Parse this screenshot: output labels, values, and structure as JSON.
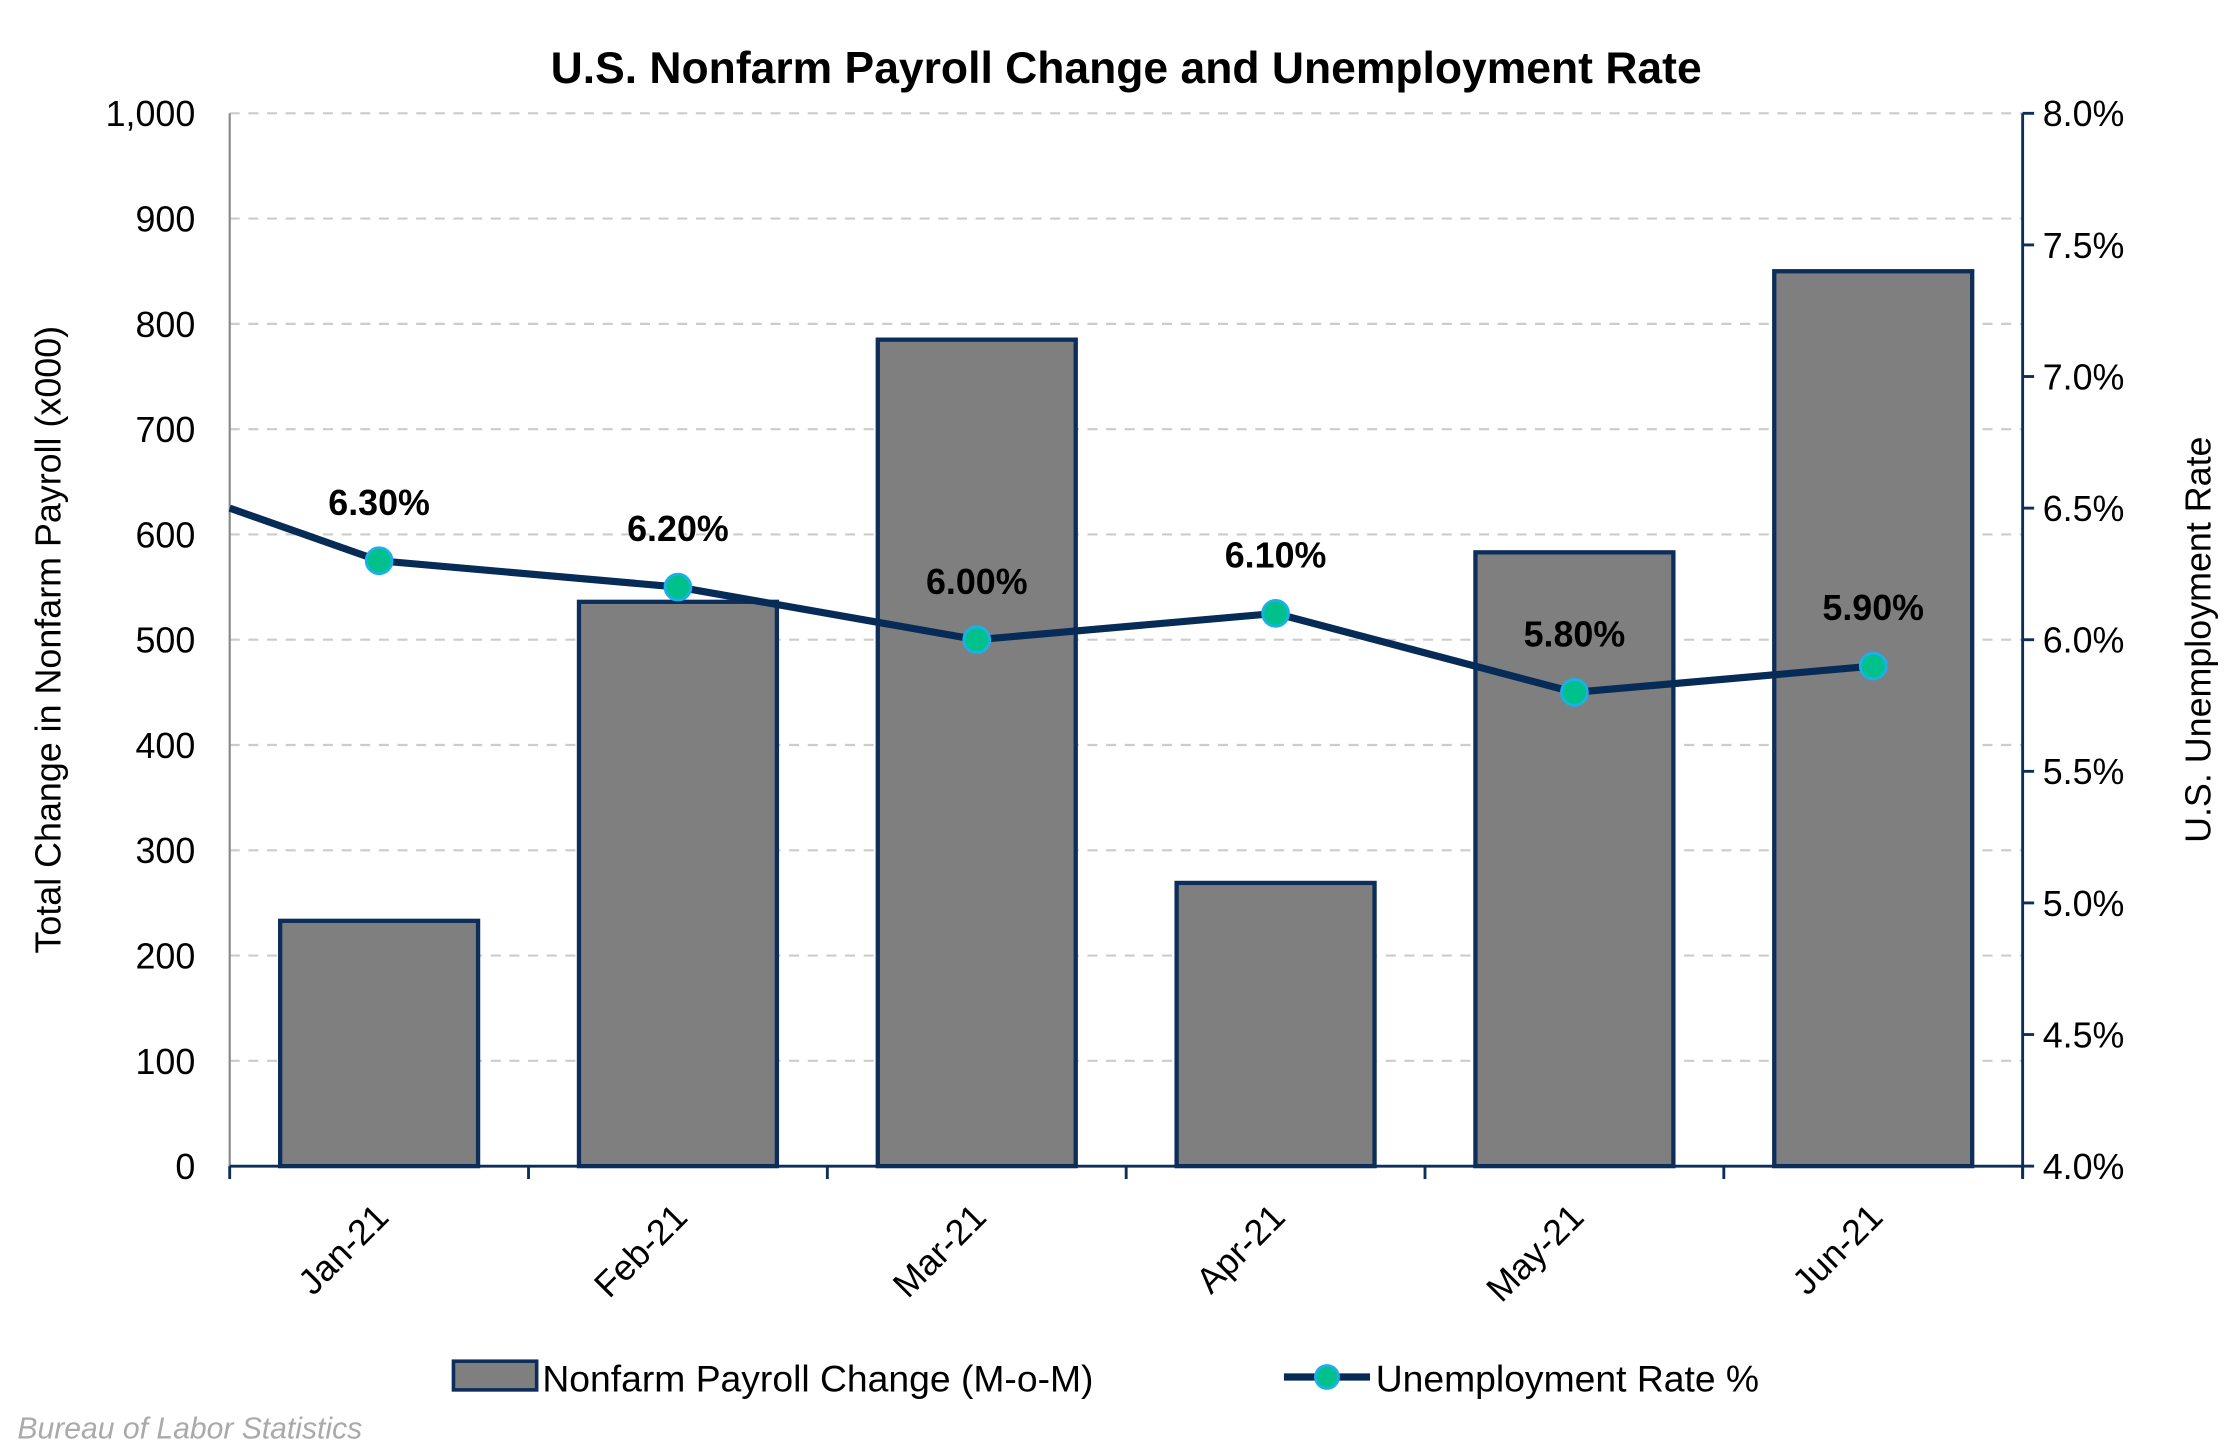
{
  "chart_data": {
    "type": "bar+line",
    "title": "U.S. Nonfarm Payroll Change and Unemployment Rate",
    "categories": [
      "Jan-21",
      "Feb-21",
      "Mar-21",
      "Apr-21",
      "May-21",
      "Jun-21"
    ],
    "series": [
      {
        "name": "Nonfarm Payroll Change (M-o-M)",
        "type": "bar",
        "axis": "left",
        "values": [
          233,
          536,
          785,
          269,
          583,
          850
        ]
      },
      {
        "name": "Unemployment Rate %",
        "type": "line",
        "axis": "right",
        "values": [
          6.3,
          6.2,
          6.0,
          6.1,
          5.8,
          5.9
        ],
        "labels": [
          "6.30%",
          "6.20%",
          "6.00%",
          "6.10%",
          "5.80%",
          "5.90%"
        ],
        "prior_value": 6.7
      }
    ],
    "ylabel": "Total Change in Nonfarm Payroll (x000)",
    "ylabel_right": "U.S. Unemployment Rate",
    "ylim": [
      0,
      1000
    ],
    "ylim_right": [
      4.0,
      8.0
    ],
    "yticks": [
      "0",
      "100",
      "200",
      "300",
      "400",
      "500",
      "600",
      "700",
      "800",
      "900",
      "1,000"
    ],
    "yticks_right": [
      "4.0%",
      "4.5%",
      "5.0%",
      "5.5%",
      "6.0%",
      "6.5%",
      "7.0%",
      "7.5%",
      "8.0%"
    ],
    "grid": true,
    "legend_position": "bottom",
    "source": "Bureau of Labor Statistics",
    "colors": {
      "bar": "#7f7f7f",
      "bar_edge": "#0d2d5a",
      "line": "#062b57",
      "marker": "#00c08b",
      "marker_edge": "#1ab0e8",
      "grid": "#cccccc"
    }
  }
}
